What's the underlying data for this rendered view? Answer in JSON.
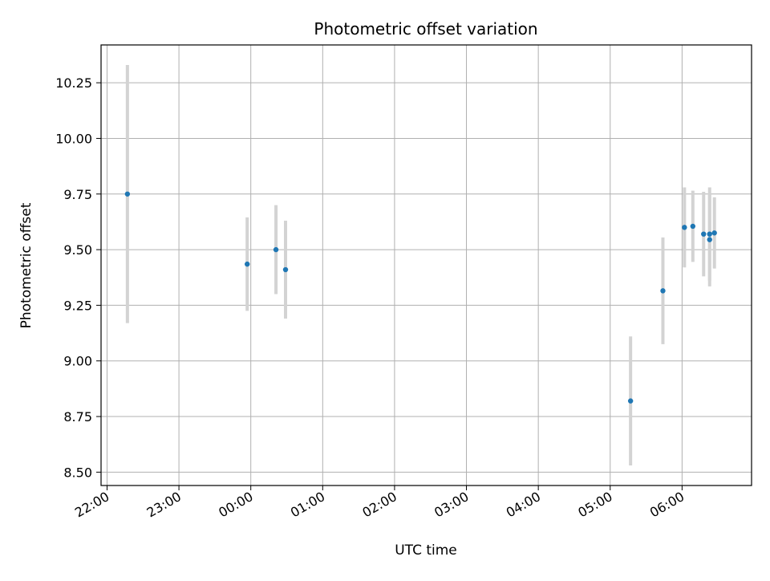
{
  "chart_data": {
    "type": "scatter",
    "title": "Photometric offset variation",
    "xlabel": "UTC time",
    "ylabel": "Photometric offset",
    "grid": true,
    "legend": "none",
    "x_axis_kind": "time",
    "xlim": [
      "21:55",
      "06:58"
    ],
    "ylim": [
      8.44,
      10.42
    ],
    "x_ticks": [
      "22:00",
      "23:00",
      "00:00",
      "01:00",
      "02:00",
      "03:00",
      "04:00",
      "05:00",
      "06:00"
    ],
    "y_ticks": [
      8.5,
      8.75,
      9.0,
      9.25,
      9.5,
      9.75,
      10.0,
      10.25
    ],
    "y_tick_labels": [
      "8.50",
      "8.75",
      "9.00",
      "9.25",
      "9.50",
      "9.75",
      "10.00",
      "10.25"
    ],
    "series": [
      {
        "marker_color": "#1f77b4",
        "errorbar_color": "#d3d3d3",
        "points": [
          {
            "x": "22:17",
            "y": 9.75,
            "y_low": 9.17,
            "y_high": 10.33
          },
          {
            "x": "23:57",
            "y": 9.435,
            "y_low": 9.225,
            "y_high": 9.645
          },
          {
            "x": "00:21",
            "y": 9.5,
            "y_low": 9.3,
            "y_high": 9.7
          },
          {
            "x": "00:29",
            "y": 9.41,
            "y_low": 9.19,
            "y_high": 9.63
          },
          {
            "x": "05:17",
            "y": 8.82,
            "y_low": 8.53,
            "y_high": 9.11
          },
          {
            "x": "05:44",
            "y": 9.315,
            "y_low": 9.075,
            "y_high": 9.555
          },
          {
            "x": "06:02",
            "y": 9.6,
            "y_low": 9.42,
            "y_high": 9.78
          },
          {
            "x": "06:09",
            "y": 9.605,
            "y_low": 9.445,
            "y_high": 9.765
          },
          {
            "x": "06:18",
            "y": 9.57,
            "y_low": 9.38,
            "y_high": 9.76
          },
          {
            "x": "06:23",
            "y": 9.57,
            "y_low": 9.36,
            "y_high": 9.78
          },
          {
            "x": "06:23",
            "y": 9.545,
            "y_low": 9.335,
            "y_high": 9.755
          },
          {
            "x": "06:27",
            "y": 9.575,
            "y_low": 9.415,
            "y_high": 9.735
          }
        ]
      }
    ]
  }
}
